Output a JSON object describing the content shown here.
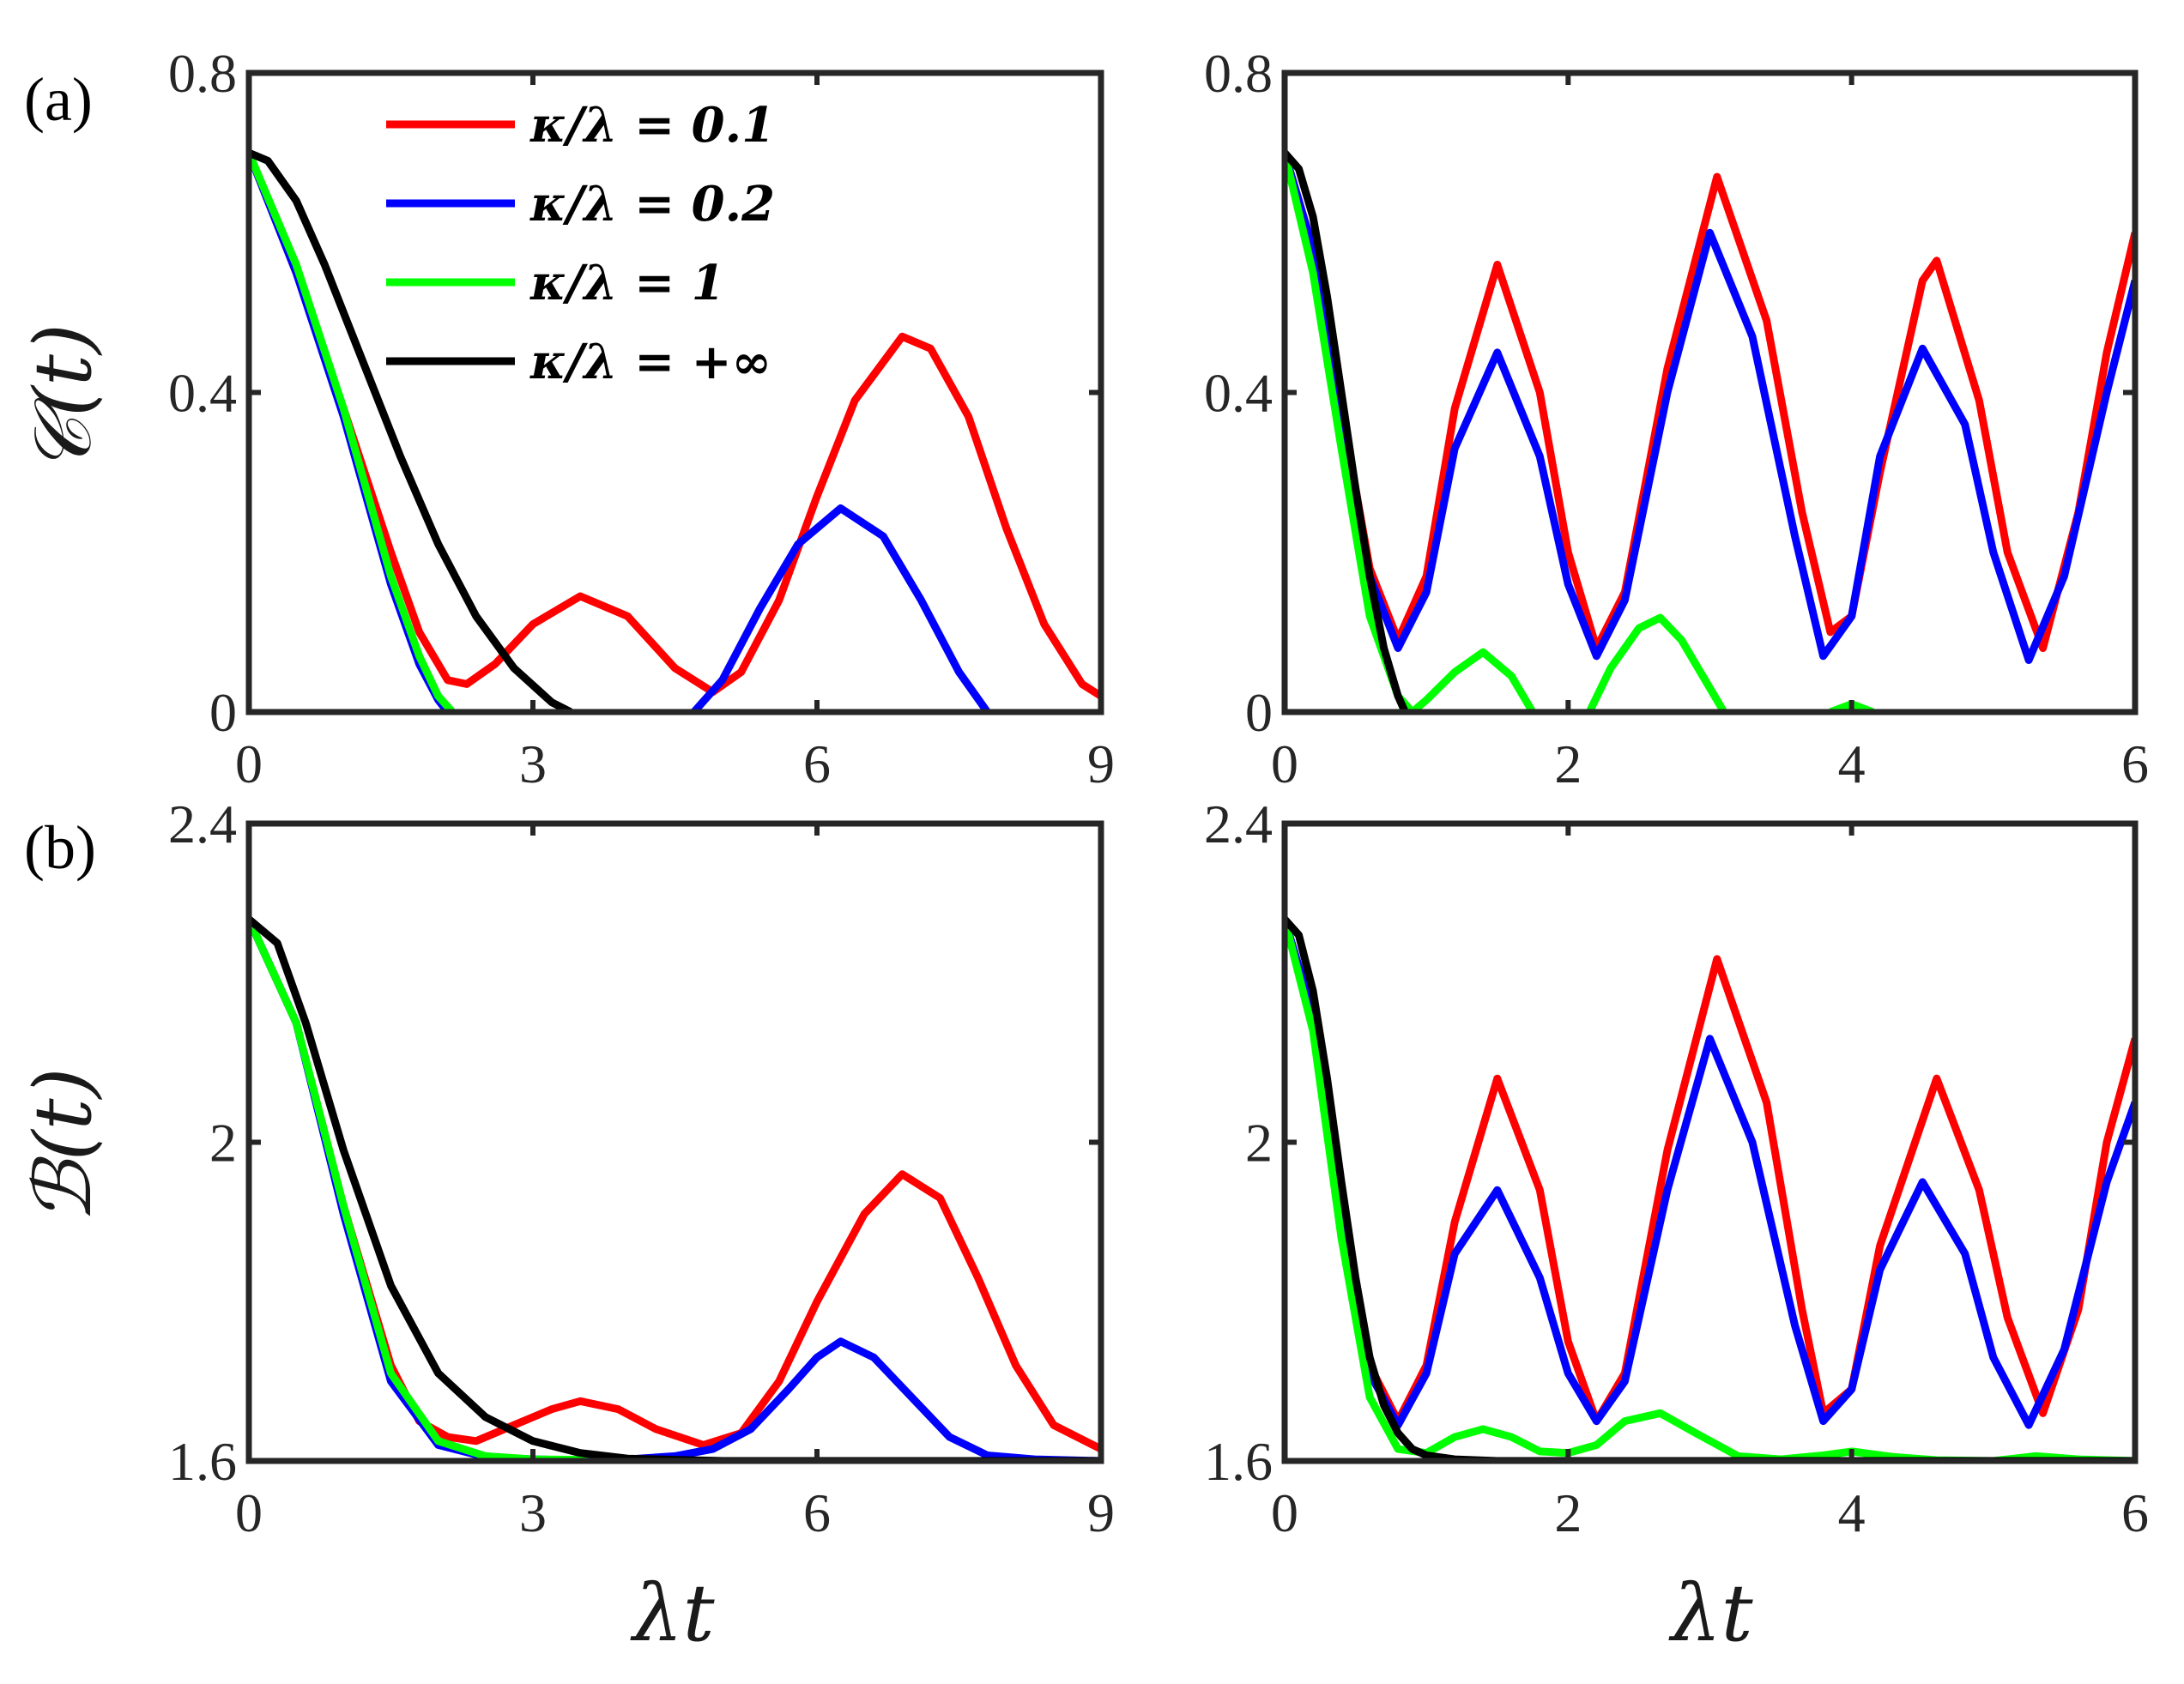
{
  "figure": {
    "xlabel": "λt",
    "legend": {
      "position": "top-right",
      "entries": [
        {
          "label": "κ/λ = 0.1",
          "color": "#ff0000"
        },
        {
          "label": "κ/λ = 0.2",
          "color": "#0000ff"
        },
        {
          "label": "κ/λ = 1",
          "color": "#00ff00"
        },
        {
          "label": "κ/λ = +∞",
          "color": "#000000"
        }
      ]
    }
  },
  "chart_data": [
    {
      "id": "a-left",
      "type": "line",
      "panel_label": "(a)",
      "ylabel": "𝒞(t)",
      "xlabel": "",
      "xlim": [
        0,
        9
      ],
      "ylim": [
        0,
        0.8
      ],
      "xticks": [
        "0",
        "3",
        "6",
        "9"
      ],
      "xtick_values": [
        0,
        3,
        6,
        9
      ],
      "yticks": [
        "0",
        "0.4",
        "0.8"
      ],
      "ytick_values": [
        0,
        0.4,
        0.8
      ],
      "series": [
        {
          "name": "κ/λ = 0.1",
          "color": "#ff0000",
          "x": [
            0,
            0.5,
            1,
            1.5,
            1.8,
            2.1,
            2.3,
            2.6,
            3.0,
            3.5,
            4.0,
            4.5,
            4.9,
            5.2,
            5.6,
            6.0,
            6.4,
            6.9,
            7.2,
            7.6,
            8.0,
            8.4,
            8.8,
            9.0
          ],
          "y": [
            0.7,
            0.55,
            0.38,
            0.2,
            0.1,
            0.04,
            0.035,
            0.06,
            0.11,
            0.145,
            0.12,
            0.055,
            0.025,
            0.05,
            0.14,
            0.27,
            0.39,
            0.47,
            0.455,
            0.37,
            0.23,
            0.11,
            0.035,
            0.02
          ]
        },
        {
          "name": "κ/λ = 0.2",
          "color": "#0000ff",
          "x": [
            0,
            0.5,
            1,
            1.5,
            1.8,
            2.0,
            2.1,
            null,
            4.7,
            5.0,
            5.4,
            5.8,
            6.25,
            6.7,
            7.1,
            7.5,
            7.8
          ],
          "y": [
            0.7,
            0.55,
            0.37,
            0.16,
            0.06,
            0.015,
            0.0,
            null,
            0.0,
            0.04,
            0.13,
            0.21,
            0.255,
            0.22,
            0.14,
            0.05,
            0.0
          ]
        },
        {
          "name": "κ/λ = 1",
          "color": "#00ff00",
          "x": [
            0,
            0.5,
            1,
            1.5,
            1.8,
            2.0,
            2.15
          ],
          "y": [
            0.7,
            0.56,
            0.38,
            0.17,
            0.07,
            0.02,
            0.0
          ]
        },
        {
          "name": "κ/λ = +∞",
          "color": "#000000",
          "x": [
            0,
            0.2,
            0.5,
            0.8,
            1.2,
            1.6,
            2.0,
            2.4,
            2.8,
            3.2,
            3.4
          ],
          "y": [
            0.7,
            0.69,
            0.64,
            0.56,
            0.44,
            0.32,
            0.21,
            0.12,
            0.055,
            0.012,
            0.0
          ]
        }
      ]
    },
    {
      "id": "a-right",
      "type": "line",
      "panel_label": "",
      "ylabel": "",
      "xlabel": "",
      "xlim": [
        0,
        6
      ],
      "ylim": [
        0,
        0.8
      ],
      "xticks": [
        "0",
        "2",
        "4",
        "6"
      ],
      "xtick_values": [
        0,
        2,
        4,
        6
      ],
      "yticks": [
        "0",
        "0.4",
        "0.8"
      ],
      "ytick_values": [
        0,
        0.4,
        0.8
      ],
      "series": [
        {
          "name": "κ/λ = 0.1",
          "color": "#ff0000",
          "x": [
            0,
            0.2,
            0.4,
            0.6,
            0.8,
            1.0,
            1.2,
            1.5,
            1.8,
            2.0,
            2.2,
            2.4,
            2.7,
            3.05,
            3.4,
            3.65,
            3.85,
            4.0,
            4.2,
            4.5,
            4.6,
            4.9,
            5.1,
            5.35,
            5.6,
            5.8,
            6.0
          ],
          "y": [
            0.7,
            0.58,
            0.38,
            0.18,
            0.09,
            0.17,
            0.38,
            0.56,
            0.4,
            0.2,
            0.08,
            0.15,
            0.43,
            0.67,
            0.49,
            0.25,
            0.1,
            0.12,
            0.3,
            0.54,
            0.565,
            0.39,
            0.2,
            0.08,
            0.25,
            0.45,
            0.6
          ]
        },
        {
          "name": "κ/λ = 0.2",
          "color": "#0000ff",
          "x": [
            0,
            0.2,
            0.4,
            0.6,
            0.8,
            1.0,
            1.2,
            1.5,
            1.8,
            2.0,
            2.2,
            2.4,
            2.7,
            3.0,
            3.3,
            3.6,
            3.8,
            4.0,
            4.2,
            4.5,
            4.8,
            5.0,
            5.25,
            5.5,
            5.8,
            6.0
          ],
          "y": [
            0.7,
            0.58,
            0.37,
            0.17,
            0.08,
            0.15,
            0.33,
            0.45,
            0.32,
            0.16,
            0.07,
            0.14,
            0.4,
            0.6,
            0.47,
            0.22,
            0.07,
            0.12,
            0.32,
            0.455,
            0.36,
            0.2,
            0.065,
            0.17,
            0.4,
            0.54
          ]
        },
        {
          "name": "κ/λ = 1",
          "color": "#00ff00",
          "x": [
            0,
            0.2,
            0.4,
            0.6,
            0.8,
            0.9,
            1.0,
            1.2,
            1.4,
            1.6,
            1.75,
            null,
            2.15,
            2.3,
            2.5,
            2.65,
            2.8,
            3.0,
            3.1,
            null,
            3.85,
            4.0,
            4.15
          ],
          "y": [
            0.7,
            0.55,
            0.33,
            0.12,
            0.02,
            0.0,
            0.015,
            0.05,
            0.075,
            0.045,
            0.0,
            null,
            0.0,
            0.055,
            0.105,
            0.118,
            0.09,
            0.03,
            0.0,
            null,
            0.0,
            0.01,
            0.0
          ]
        },
        {
          "name": "κ/λ = +∞",
          "color": "#000000",
          "x": [
            0,
            0.1,
            0.2,
            0.3,
            0.4,
            0.5,
            0.6,
            0.7,
            0.8,
            0.85
          ],
          "y": [
            0.7,
            0.68,
            0.62,
            0.52,
            0.4,
            0.28,
            0.17,
            0.08,
            0.02,
            0.0
          ]
        }
      ]
    },
    {
      "id": "b-left",
      "type": "line",
      "panel_label": "(b)",
      "ylabel": "ℬ(t)",
      "xlabel": "λt",
      "xlim": [
        0,
        9
      ],
      "ylim": [
        1.6,
        2.4
      ],
      "xticks": [
        "0",
        "3",
        "6",
        "9"
      ],
      "xtick_values": [
        0,
        3,
        6,
        9
      ],
      "yticks": [
        "1.6",
        "2",
        "2.4"
      ],
      "ytick_values": [
        1.6,
        2.0,
        2.4
      ],
      "series": [
        {
          "name": "κ/λ = 0.1",
          "color": "#ff0000",
          "x": [
            0,
            0.5,
            1,
            1.5,
            1.8,
            2.1,
            2.4,
            2.8,
            3.2,
            3.5,
            3.9,
            4.3,
            4.8,
            5.2,
            5.6,
            6.0,
            6.5,
            6.9,
            7.3,
            7.7,
            8.1,
            8.5,
            9.0
          ],
          "y": [
            2.28,
            2.15,
            1.92,
            1.72,
            1.65,
            1.63,
            1.625,
            1.645,
            1.665,
            1.675,
            1.665,
            1.64,
            1.62,
            1.635,
            1.7,
            1.8,
            1.91,
            1.96,
            1.93,
            1.83,
            1.72,
            1.645,
            1.615
          ]
        },
        {
          "name": "κ/λ = 0.2",
          "color": "#0000ff",
          "x": [
            0,
            0.5,
            1,
            1.5,
            2.0,
            2.5,
            3.0,
            3.5,
            4.0,
            4.5,
            4.9,
            5.3,
            5.7,
            6.0,
            6.25,
            6.6,
            7.0,
            7.4,
            7.8,
            8.3,
            9.0
          ],
          "y": [
            2.28,
            2.15,
            1.91,
            1.7,
            1.62,
            1.605,
            1.602,
            1.601,
            1.602,
            1.606,
            1.615,
            1.64,
            1.69,
            1.73,
            1.75,
            1.73,
            1.68,
            1.63,
            1.607,
            1.602,
            1.6
          ]
        },
        {
          "name": "κ/λ = 1",
          "color": "#00ff00",
          "x": [
            0,
            0.5,
            1,
            1.5,
            2.0,
            2.5,
            3.0,
            4.0,
            5.0,
            6.0,
            7.0,
            8.0,
            9.0
          ],
          "y": [
            2.28,
            2.15,
            1.92,
            1.71,
            1.625,
            1.606,
            1.602,
            1.601,
            1.6,
            1.6,
            1.6,
            1.6,
            1.6
          ]
        },
        {
          "name": "κ/λ = +∞",
          "color": "#000000",
          "x": [
            0,
            0.3,
            0.6,
            1.0,
            1.5,
            2.0,
            2.5,
            3.0,
            3.5,
            4.0,
            5.0,
            6.0,
            7.0,
            8.0,
            9.0
          ],
          "y": [
            2.28,
            2.25,
            2.15,
            1.99,
            1.82,
            1.71,
            1.655,
            1.625,
            1.61,
            1.603,
            1.6,
            1.6,
            1.6,
            1.6,
            1.6
          ]
        }
      ]
    },
    {
      "id": "b-right",
      "type": "line",
      "panel_label": "",
      "ylabel": "",
      "xlabel": "λt",
      "xlim": [
        0,
        6
      ],
      "ylim": [
        1.6,
        2.4
      ],
      "xticks": [
        "0",
        "2",
        "4",
        "6"
      ],
      "xtick_values": [
        0,
        2,
        4,
        6
      ],
      "yticks": [
        "1.6",
        "2",
        "2.4"
      ],
      "ytick_values": [
        1.6,
        2.0,
        2.4
      ],
      "series": [
        {
          "name": "κ/λ = 0.1",
          "color": "#ff0000",
          "x": [
            0,
            0.2,
            0.4,
            0.6,
            0.8,
            1.0,
            1.2,
            1.5,
            1.8,
            2.0,
            2.2,
            2.4,
            2.7,
            3.05,
            3.4,
            3.65,
            3.8,
            4.0,
            4.2,
            4.6,
            4.9,
            5.1,
            5.35,
            5.6,
            5.8,
            6.0
          ],
          "y": [
            2.28,
            2.16,
            1.92,
            1.72,
            1.65,
            1.72,
            1.9,
            2.08,
            1.94,
            1.75,
            1.65,
            1.71,
            1.99,
            2.23,
            2.05,
            1.79,
            1.66,
            1.69,
            1.87,
            2.08,
            1.94,
            1.78,
            1.66,
            1.79,
            2.0,
            2.13
          ]
        },
        {
          "name": "κ/λ = 0.2",
          "color": "#0000ff",
          "x": [
            0,
            0.2,
            0.4,
            0.6,
            0.8,
            1.0,
            1.2,
            1.5,
            1.8,
            2.0,
            2.2,
            2.4,
            2.7,
            3.0,
            3.3,
            3.6,
            3.8,
            4.0,
            4.2,
            4.5,
            4.8,
            5.0,
            5.25,
            5.5,
            5.8,
            6.0
          ],
          "y": [
            2.28,
            2.16,
            1.91,
            1.71,
            1.645,
            1.71,
            1.86,
            1.94,
            1.83,
            1.71,
            1.65,
            1.7,
            1.94,
            2.13,
            2.0,
            1.77,
            1.65,
            1.69,
            1.84,
            1.95,
            1.86,
            1.73,
            1.645,
            1.74,
            1.95,
            2.05
          ]
        },
        {
          "name": "κ/λ = 1",
          "color": "#00ff00",
          "x": [
            0,
            0.2,
            0.4,
            0.6,
            0.8,
            1.0,
            1.2,
            1.4,
            1.6,
            1.8,
            2.0,
            2.2,
            2.4,
            2.65,
            2.9,
            3.2,
            3.5,
            3.8,
            4.0,
            4.3,
            4.6,
            5.0,
            5.3,
            5.6,
            6.0
          ],
          "y": [
            2.28,
            2.14,
            1.88,
            1.68,
            1.615,
            1.61,
            1.63,
            1.64,
            1.63,
            1.612,
            1.61,
            1.62,
            1.65,
            1.66,
            1.635,
            1.606,
            1.602,
            1.607,
            1.612,
            1.605,
            1.601,
            1.6,
            1.606,
            1.602,
            1.6
          ]
        },
        {
          "name": "κ/λ = +∞",
          "color": "#000000",
          "x": [
            0,
            0.1,
            0.2,
            0.3,
            0.4,
            0.5,
            0.6,
            0.7,
            0.8,
            0.9,
            1.0,
            1.2,
            1.5,
            2.0,
            3.0,
            4.0,
            5.0,
            6.0
          ],
          "y": [
            2.28,
            2.26,
            2.19,
            2.08,
            1.95,
            1.83,
            1.73,
            1.67,
            1.635,
            1.615,
            1.607,
            1.602,
            1.6,
            1.6,
            1.6,
            1.6,
            1.6,
            1.6
          ]
        }
      ]
    }
  ]
}
